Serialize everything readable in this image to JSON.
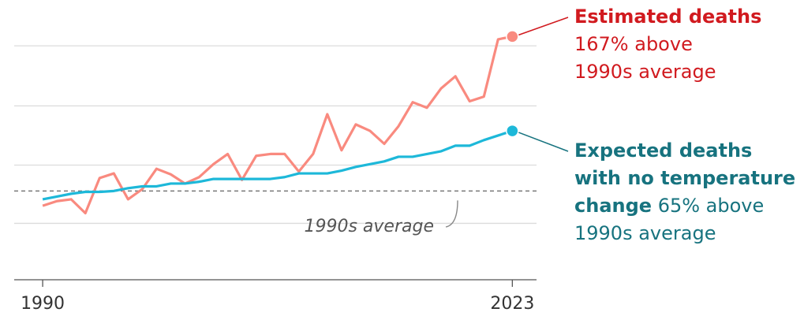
{
  "chart_data": {
    "type": "line",
    "x": [
      1990,
      1991,
      1992,
      1993,
      1994,
      1995,
      1996,
      1997,
      1998,
      1999,
      2000,
      2001,
      2002,
      2003,
      2004,
      2005,
      2006,
      2007,
      2008,
      2009,
      2010,
      2011,
      2012,
      2013,
      2014,
      2015,
      2016,
      2017,
      2018,
      2019,
      2020,
      2021,
      2022,
      2023
    ],
    "series": [
      {
        "label": [
          "Estimated deaths"
        ],
        "note": [
          "167% above",
          "1990s average"
        ],
        "color": "#f98a7f",
        "label_color": "#d11a1f",
        "values": [
          -16,
          -11,
          -9,
          -24,
          14,
          19,
          -9,
          2,
          24,
          18,
          8,
          15,
          29,
          40,
          12,
          38,
          40,
          40,
          21,
          40,
          83,
          44,
          72,
          65,
          51,
          70,
          96,
          90,
          111,
          124,
          97,
          102,
          164,
          167
        ]
      },
      {
        "label": [
          "Expected deaths",
          "with no temperature",
          "change"
        ],
        "note": [
          "65% above",
          "1990s average"
        ],
        "color": "#1db8d9",
        "label_color": "#17737f",
        "values": [
          -9,
          -6,
          -3,
          -1,
          -1,
          0,
          3,
          5,
          5,
          8,
          8,
          10,
          13,
          13,
          13,
          13,
          13,
          15,
          19,
          19,
          19,
          22,
          26,
          29,
          32,
          37,
          37,
          40,
          43,
          49,
          49,
          55,
          60,
          65
        ]
      }
    ],
    "reference": {
      "value": 0,
      "label": "1990s average"
    },
    "xlim": [
      1988,
      2024.7
    ],
    "xticks": [
      1990,
      2023
    ],
    "ylim": [
      -96,
      198
    ],
    "yticks": [
      -35,
      28,
      92,
      157
    ],
    "grid": true
  }
}
